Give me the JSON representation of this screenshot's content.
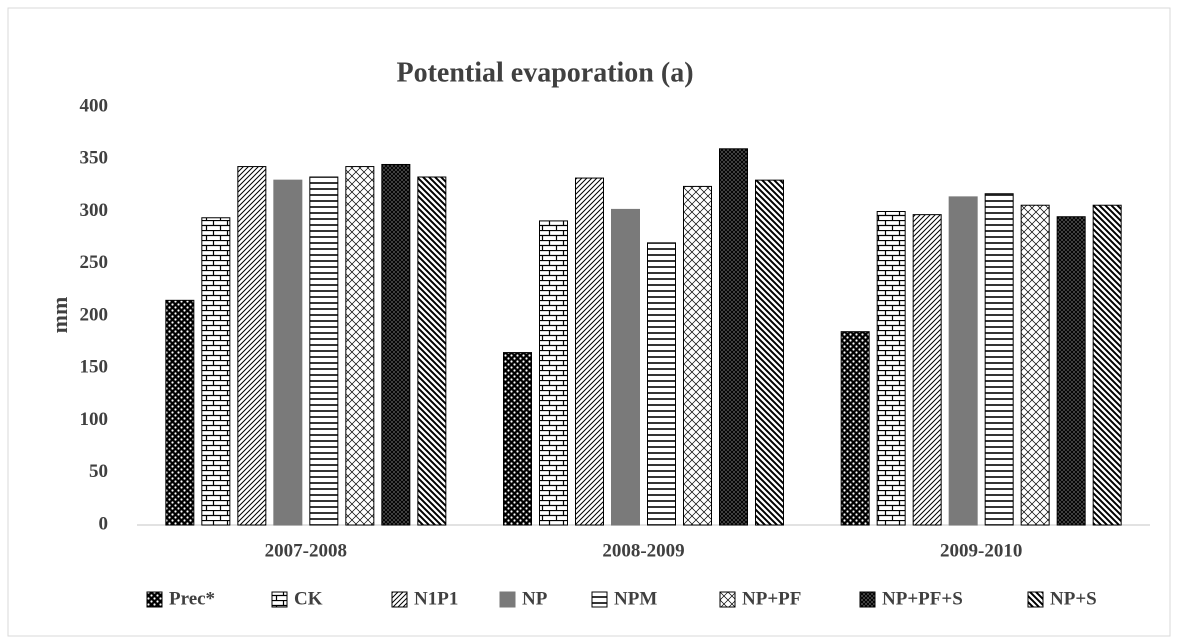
{
  "chart_data": {
    "type": "bar",
    "title": "Potential evaporation (a)",
    "y_label": "mm",
    "categories": [
      "2007-2008",
      "2008-2009",
      "2009-2010"
    ],
    "series": [
      {
        "name": "Prec*",
        "color": "#000000",
        "pattern": "dots",
        "values": [
          215,
          165,
          185
        ]
      },
      {
        "name": "CK",
        "color": "#000000",
        "pattern": "brick",
        "values": [
          294,
          291,
          300
        ]
      },
      {
        "name": "N1P1",
        "color": "#000000",
        "pattern": "diag-thin",
        "values": [
          343,
          332,
          297
        ]
      },
      {
        "name": "NP",
        "color": "#7a7a7a",
        "pattern": "solid",
        "values": [
          330,
          302,
          314
        ]
      },
      {
        "name": "NPM",
        "color": "#000000",
        "pattern": "hlines",
        "values": [
          333,
          270,
          317
        ]
      },
      {
        "name": "NP+PF",
        "color": "#000000",
        "pattern": "cross-light",
        "values": [
          343,
          324,
          306
        ]
      },
      {
        "name": "NP+PF+S",
        "color": "#000000",
        "pattern": "cross-dense",
        "values": [
          345,
          360,
          295
        ]
      },
      {
        "name": "NP+S",
        "color": "#000000",
        "pattern": "diag-thick",
        "values": [
          333,
          330,
          306
        ]
      }
    ],
    "ylim": [
      0,
      400
    ],
    "yticks": [
      0,
      50,
      100,
      150,
      200,
      250,
      300,
      350,
      400
    ],
    "grid": false
  }
}
